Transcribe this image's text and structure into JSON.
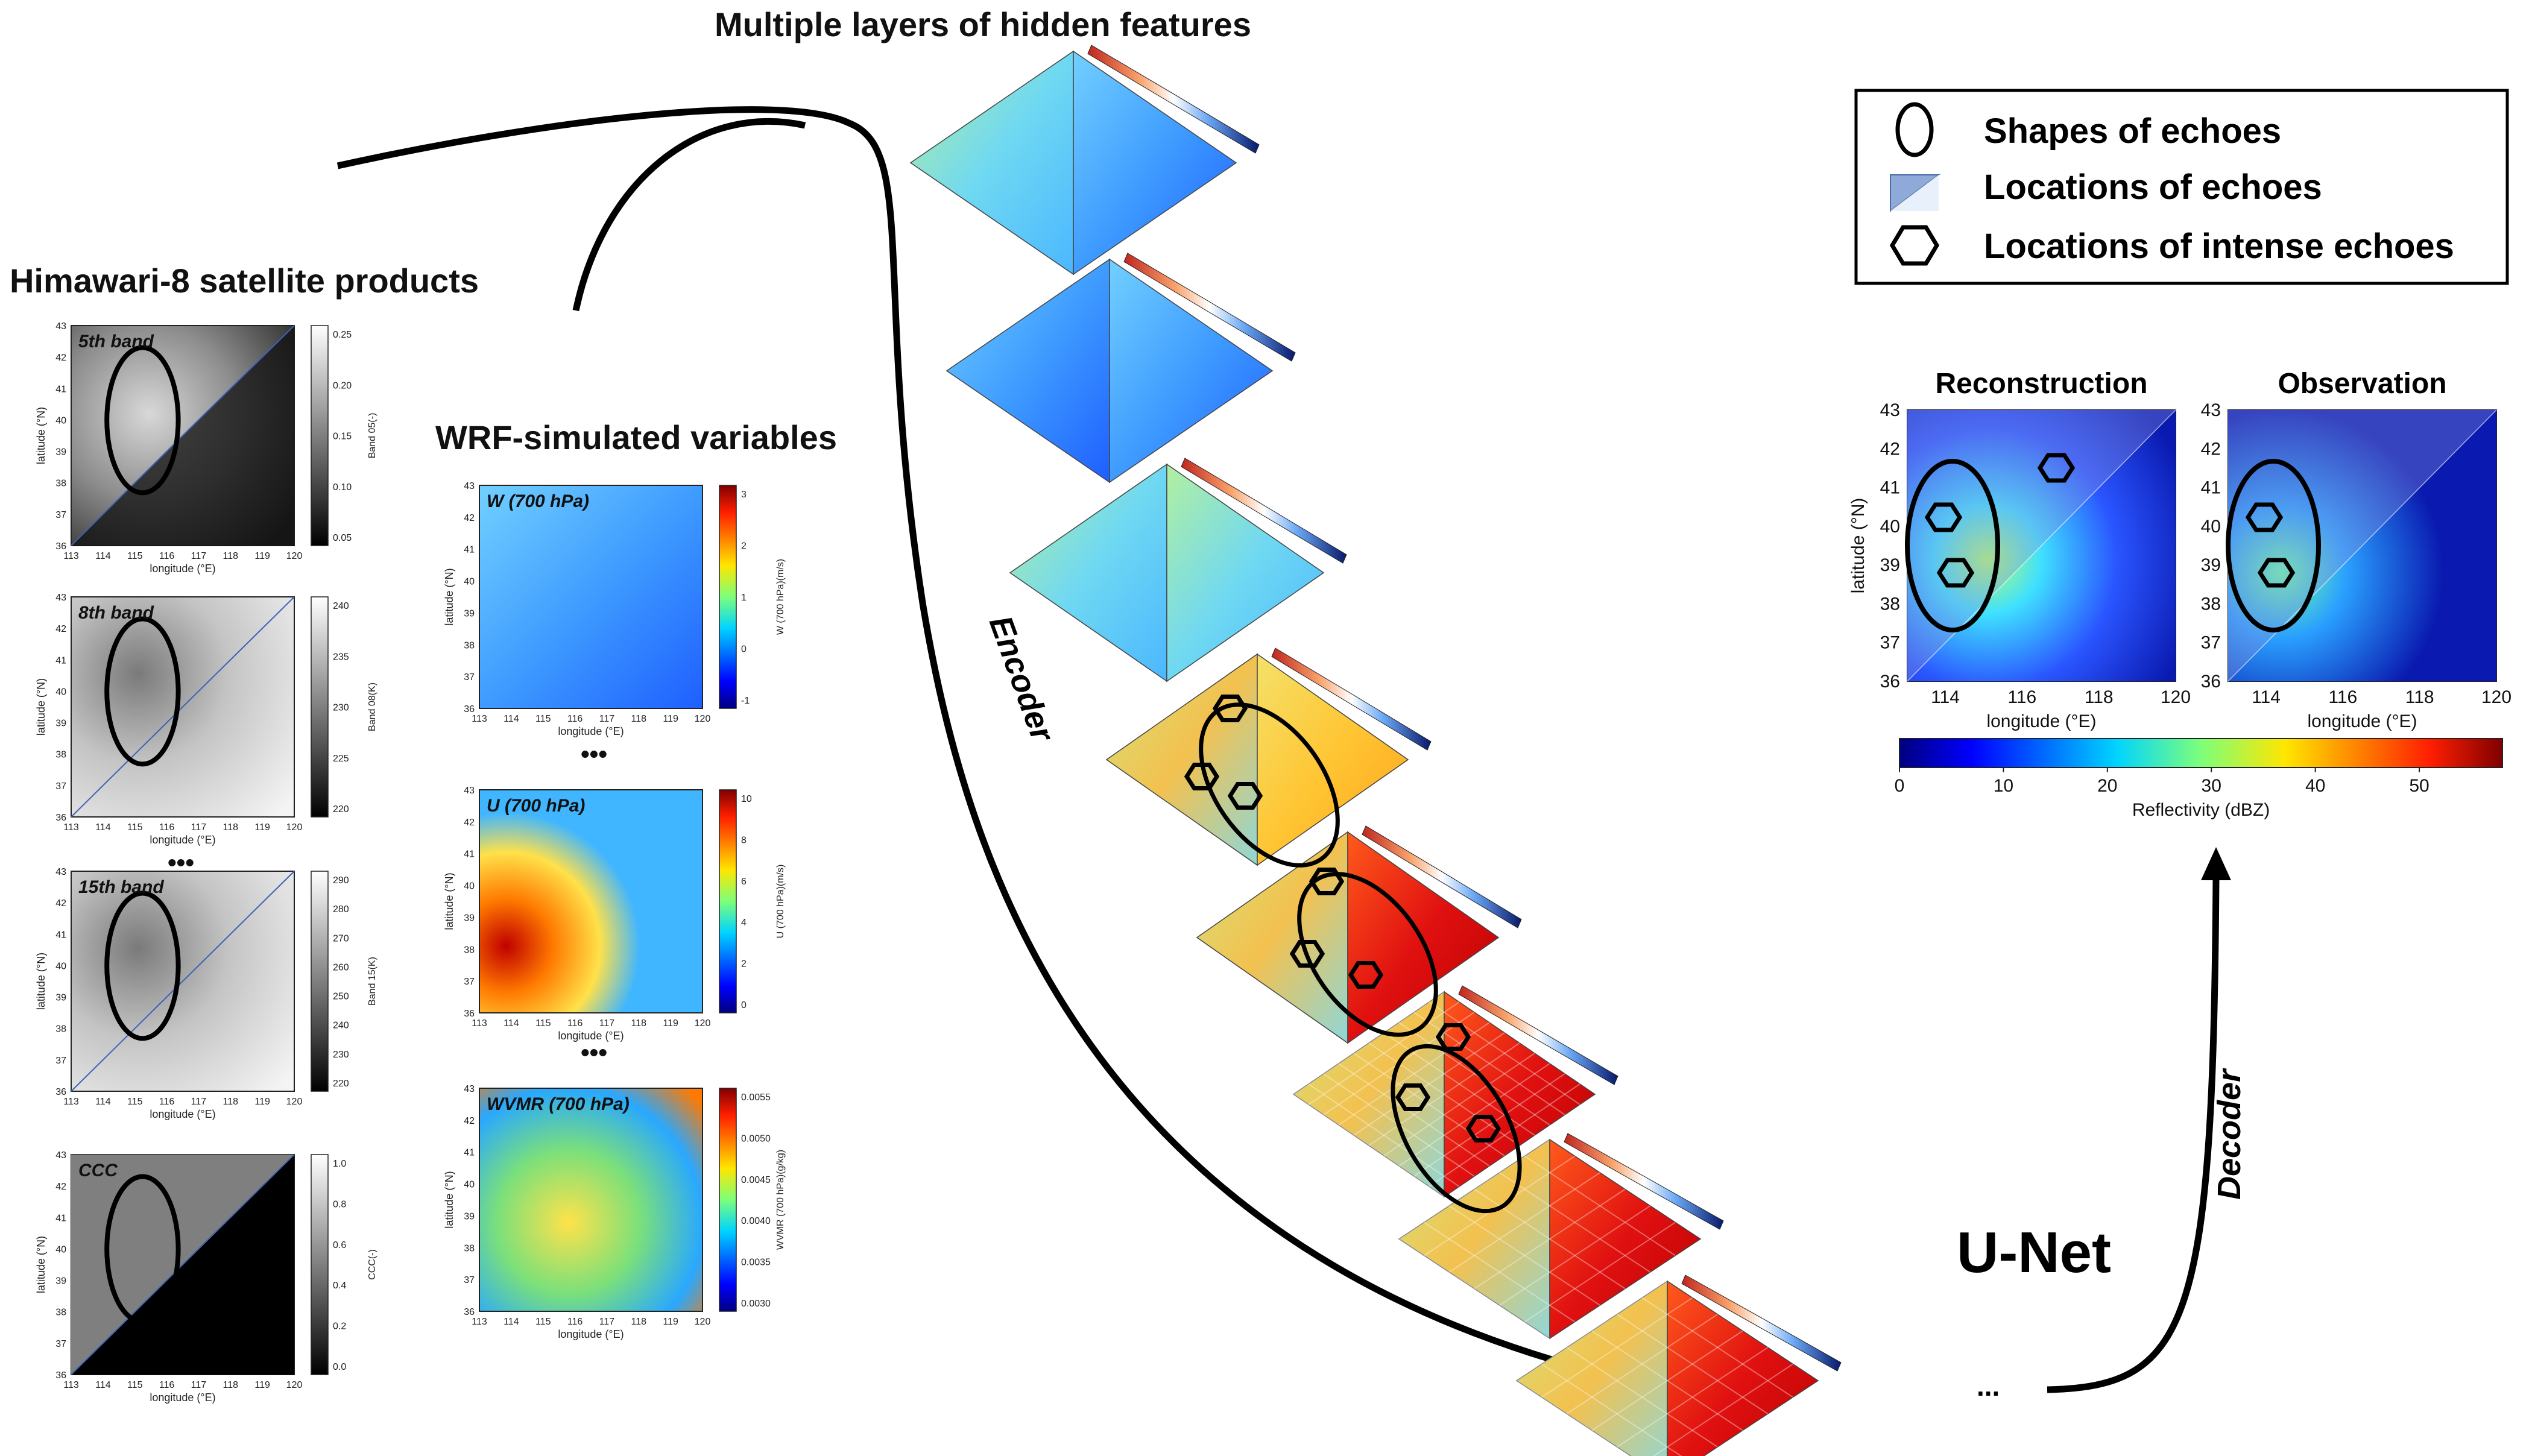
{
  "figure": {
    "top_title": "Multiple layers of hidden features",
    "satellite_title": "Himawari-8 satellite products",
    "wrf_title": "WRF-simulated variables",
    "encoder_label": "Encoder",
    "decoder_label": "Decoder",
    "unet_label": "U-Net",
    "ellipsis": "•••",
    "trailing_dots": "...",
    "legend": [
      {
        "icon": "ellipse-icon",
        "text": "Shapes of echoes"
      },
      {
        "icon": "triangle-icon",
        "text": "Locations of echoes"
      },
      {
        "icon": "hexagon-icon",
        "text": "Locations of intense echoes"
      }
    ]
  },
  "small_axes": {
    "lat_label": "latitude (°N)",
    "lon_label": "longitude (°E)",
    "lat_ticks": [
      "43",
      "42",
      "41",
      "40",
      "39",
      "38",
      "37",
      "36"
    ],
    "lon_ticks": [
      "113",
      "114",
      "115",
      "116",
      "117",
      "118",
      "119",
      "120"
    ]
  },
  "satellite_panels": [
    {
      "label": "5th band",
      "cbar_label": "Band 05(-)",
      "cbar_ticks": [
        "0.25",
        "0.20",
        "0.15",
        "0.10",
        "0.05"
      ]
    },
    {
      "label": "8th band",
      "cbar_label": "Band 08(K)",
      "cbar_ticks": [
        "240",
        "235",
        "230",
        "225",
        "220"
      ]
    },
    {
      "label": "15th band",
      "cbar_label": "Band 15(K)",
      "cbar_ticks": [
        "290",
        "280",
        "270",
        "260",
        "250",
        "240",
        "230",
        "220"
      ]
    },
    {
      "label": "CCC",
      "cbar_label": "CCC(-)",
      "cbar_ticks": [
        "1.0",
        "0.8",
        "0.6",
        "0.4",
        "0.2",
        "0.0"
      ]
    }
  ],
  "wrf_panels": [
    {
      "label": "W (700 hPa)",
      "cbar_label": "W (700 hPa)(m/s)",
      "cbar_ticks": [
        "3",
        "2",
        "1",
        "0",
        "-1"
      ]
    },
    {
      "label": "U (700 hPa)",
      "cbar_label": "U (700 hPa)(m/s)",
      "cbar_ticks": [
        "10",
        "8",
        "6",
        "4",
        "2",
        "0"
      ]
    },
    {
      "label": "WVMR (700 hPa)",
      "cbar_label": "WVMR (700 hPa)(g/kg)",
      "cbar_ticks": [
        "0.0055",
        "0.0050",
        "0.0045",
        "0.0040",
        "0.0035",
        "0.0030"
      ]
    }
  ],
  "results": {
    "panels": [
      {
        "title": "Reconstruction"
      },
      {
        "title": "Observation"
      }
    ],
    "lat_label": "latitude (°N)",
    "lon_label": "longitude (°E)",
    "lat_ticks": [
      "43",
      "42",
      "41",
      "40",
      "39",
      "38",
      "37",
      "36"
    ],
    "lon_ticks": [
      "114",
      "116",
      "118",
      "120"
    ],
    "colorbar": {
      "label": "Reflectivity (dBZ)",
      "ticks": [
        "0",
        "10",
        "20",
        "30",
        "40",
        "50"
      ],
      "range": [
        0,
        58
      ]
    }
  }
}
